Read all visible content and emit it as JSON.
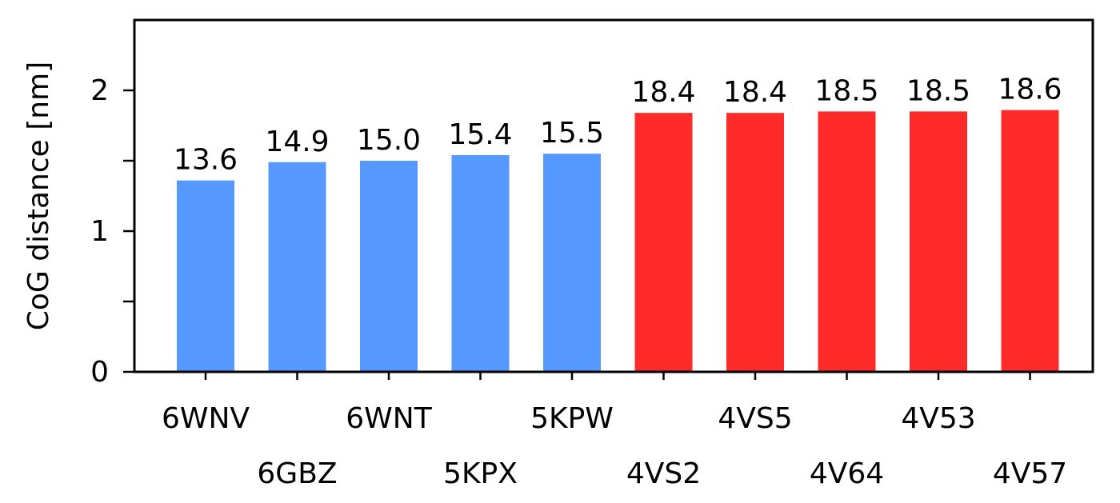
{
  "chart_data": {
    "type": "bar",
    "categories": [
      "6WNV",
      "6GBZ",
      "6WNT",
      "5KPX",
      "5KPW",
      "4VS2",
      "4VS5",
      "4V64",
      "4V53",
      "4V57"
    ],
    "values": [
      1.36,
      1.49,
      1.5,
      1.54,
      1.55,
      1.84,
      1.84,
      1.85,
      1.85,
      1.86
    ],
    "data_labels": [
      "13.6",
      "14.9",
      "15.0",
      "15.4",
      "15.5",
      "18.4",
      "18.4",
      "18.5",
      "18.5",
      "18.6"
    ],
    "bar_colors": [
      "#5599ff",
      "#5599ff",
      "#5599ff",
      "#5599ff",
      "#5599ff",
      "#ff2a2a",
      "#ff2a2a",
      "#ff2a2a",
      "#ff2a2a",
      "#ff2a2a"
    ],
    "title": "",
    "xlabel": "",
    "ylabel": "CoG distance [nm]",
    "ylim": [
      0,
      2.5
    ],
    "yticks": [
      0,
      1,
      2
    ],
    "yticks_minor": [
      0.5,
      1.5
    ],
    "grid": false
  }
}
